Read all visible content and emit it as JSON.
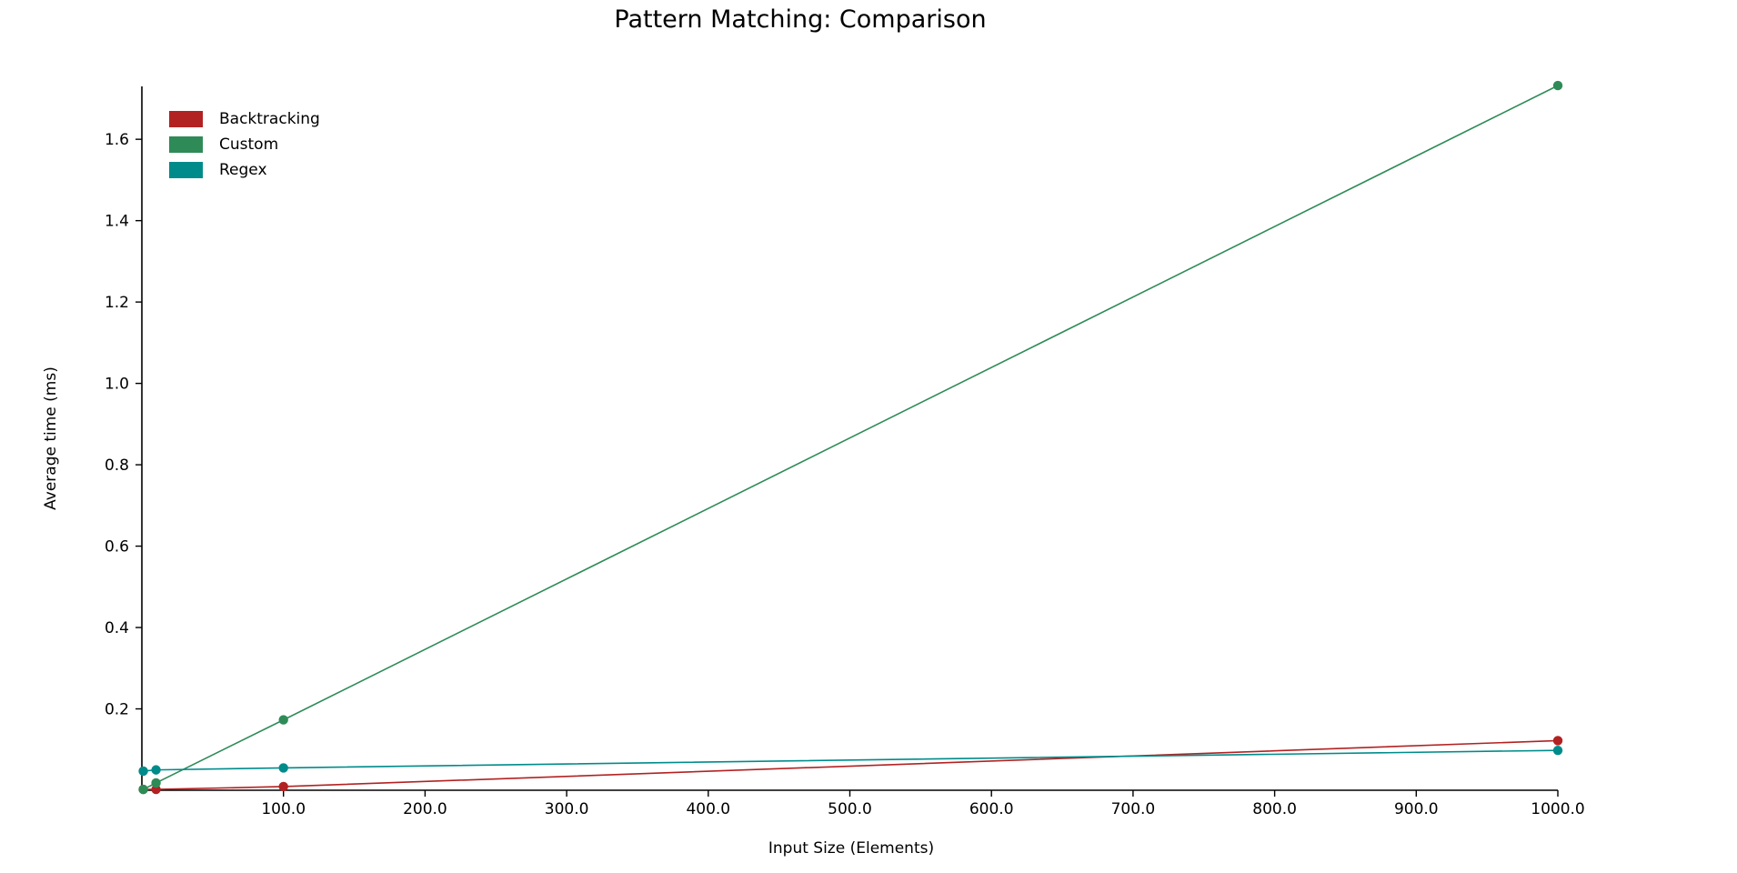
{
  "chart_data": {
    "type": "line",
    "title": "Pattern Matching: Comparison",
    "xlabel": "Input Size (Elements)",
    "ylabel": "Average time (ms)",
    "xlim": [
      0,
      1000
    ],
    "ylim": [
      0,
      1.73
    ],
    "x_ticks": [
      100,
      200,
      300,
      400,
      500,
      600,
      700,
      800,
      900,
      1000
    ],
    "x_tick_labels": [
      "100.0",
      "200.0",
      "300.0",
      "400.0",
      "500.0",
      "600.0",
      "700.0",
      "800.0",
      "900.0",
      "1000.0"
    ],
    "y_ticks": [
      0.2,
      0.4,
      0.6,
      0.8,
      1.0,
      1.2,
      1.4,
      1.6
    ],
    "y_tick_labels": [
      "0.2",
      "0.4",
      "0.6",
      "0.8",
      "1.0",
      "1.2",
      "1.4",
      "1.6"
    ],
    "grid": false,
    "legend_position": "top-left",
    "x": [
      1,
      10,
      100,
      1000
    ],
    "series": [
      {
        "name": "Backtracking",
        "color": "#b22222",
        "values": [
          0.002,
          0.002,
          0.009,
          0.122
        ]
      },
      {
        "name": "Custom",
        "color": "#2e8b57",
        "values": [
          0.002,
          0.018,
          0.173,
          1.732
        ]
      },
      {
        "name": "Regex",
        "color": "#008b8b",
        "values": [
          0.047,
          0.05,
          0.055,
          0.098
        ]
      }
    ]
  }
}
